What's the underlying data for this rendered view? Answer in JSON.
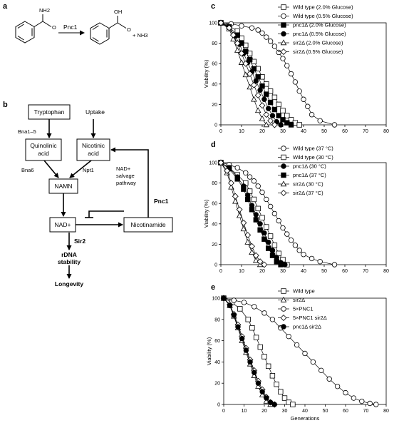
{
  "panels": {
    "a": {
      "letter": "a",
      "enzyme": "Pnc1",
      "substrate_group": "NH2",
      "product_group": "OH",
      "product_atom": "O",
      "byproduct": "+ NH3"
    },
    "b": {
      "letter": "b",
      "nodes": {
        "tryptophan": "Tryptophan",
        "uptake": "Uptake",
        "quinolinic": [
          "Quinolinic",
          "acid"
        ],
        "nicotinic": [
          "Nicotinic",
          "acid"
        ],
        "namn": "NAMN",
        "nad": "NAD+",
        "nicotinamide": "Nicotinamide",
        "rdna": [
          "rDNA",
          "stability"
        ],
        "longevity": "Longevity"
      },
      "edges": {
        "bna1_5": "Bna1–5",
        "bna6": "Bna6",
        "npt1": "Npt1",
        "salvage": [
          "NAD+",
          "salvage",
          "pathway"
        ],
        "pnc1": "Pnc1",
        "sir2": "Sir2"
      }
    }
  },
  "chart_data": [
    {
      "panel": "c",
      "type": "line",
      "xlabel": "",
      "ylabel": "Viability (%)",
      "xlim": [
        0,
        80
      ],
      "ylim": [
        0,
        100
      ],
      "xticks": [
        0,
        10,
        20,
        30,
        40,
        50,
        60,
        70,
        80
      ],
      "yticks": [
        0,
        20,
        40,
        60,
        80,
        100
      ],
      "legend_position": "top-right",
      "series": [
        {
          "name": "Wild type (2.0% Glucose)",
          "marker": "square-open",
          "x": [
            0,
            4,
            8,
            10,
            12,
            14,
            16,
            18,
            20,
            22,
            24,
            26,
            28,
            30,
            32,
            34,
            36,
            38
          ],
          "y": [
            100,
            97,
            92,
            85,
            78,
            70,
            62,
            55,
            47,
            40,
            33,
            27,
            20,
            14,
            9,
            5,
            2,
            0
          ]
        },
        {
          "name": "Wild type (0.5% Glucose)",
          "marker": "circle-open",
          "x": [
            0,
            5,
            10,
            15,
            18,
            20,
            22,
            24,
            26,
            28,
            30,
            32,
            34,
            36,
            38,
            40,
            42,
            44,
            48,
            55
          ],
          "y": [
            100,
            99,
            97,
            95,
            93,
            90,
            86,
            82,
            77,
            71,
            65,
            58,
            50,
            42,
            33,
            25,
            18,
            10,
            4,
            0
          ]
        },
        {
          "name": "pnc1Δ (2.0% Glucose)",
          "marker": "square-filled",
          "x": [
            0,
            4,
            8,
            10,
            12,
            14,
            16,
            18,
            20,
            22,
            24,
            26,
            28,
            30,
            32,
            34
          ],
          "y": [
            100,
            96,
            88,
            80,
            72,
            64,
            55,
            47,
            38,
            30,
            22,
            15,
            9,
            5,
            2,
            0
          ]
        },
        {
          "name": "pnc1Δ (0.5% Glucose)",
          "marker": "circle-filled",
          "x": [
            0,
            4,
            7,
            9,
            11,
            13,
            15,
            17,
            19,
            21,
            23,
            25,
            27,
            29
          ],
          "y": [
            100,
            95,
            87,
            79,
            70,
            61,
            52,
            43,
            34,
            25,
            16,
            9,
            3,
            0
          ]
        },
        {
          "name": "sir2Δ (2.0% Glucose)",
          "marker": "triangle-open",
          "x": [
            0,
            4,
            6,
            8,
            10,
            12,
            14,
            16,
            18,
            20,
            22
          ],
          "y": [
            100,
            94,
            84,
            73,
            61,
            49,
            37,
            25,
            14,
            6,
            0
          ]
        },
        {
          "name": "sir2Δ (0.5% Glucose)",
          "marker": "diamond-open",
          "x": [
            0,
            4,
            6,
            8,
            10,
            12,
            14,
            16,
            18,
            20,
            22,
            24,
            26
          ],
          "y": [
            100,
            95,
            88,
            80,
            70,
            60,
            50,
            39,
            29,
            19,
            10,
            4,
            0
          ]
        }
      ]
    },
    {
      "panel": "d",
      "type": "line",
      "xlabel": "",
      "ylabel": "Viability (%)",
      "xlim": [
        0,
        80
      ],
      "ylim": [
        0,
        100
      ],
      "xticks": [
        0,
        10,
        20,
        30,
        40,
        50,
        60,
        70,
        80
      ],
      "yticks": [
        0,
        20,
        40,
        60,
        80,
        100
      ],
      "legend_position": "top-right",
      "series": [
        {
          "name": "Wild type (37 °C)",
          "marker": "circle-open",
          "x": [
            0,
            4,
            8,
            12,
            14,
            16,
            18,
            20,
            22,
            24,
            26,
            28,
            30,
            32,
            34,
            36,
            38,
            40,
            44,
            48,
            55
          ],
          "y": [
            100,
            98,
            95,
            90,
            86,
            82,
            77,
            71,
            64,
            57,
            50,
            43,
            36,
            30,
            24,
            19,
            14,
            10,
            6,
            3,
            0
          ]
        },
        {
          "name": "Wild type (30 °C)",
          "marker": "square-open",
          "x": [
            0,
            4,
            8,
            12,
            14,
            16,
            18,
            20,
            22,
            24,
            26,
            28,
            30,
            32
          ],
          "y": [
            100,
            95,
            88,
            80,
            72,
            64,
            55,
            46,
            37,
            28,
            19,
            11,
            5,
            0
          ]
        },
        {
          "name": "pnc1Δ (30 °C)",
          "marker": "circle-filled",
          "x": [
            0,
            4,
            8,
            11,
            13,
            15,
            17,
            19,
            21,
            23,
            25,
            27,
            29,
            31
          ],
          "y": [
            100,
            95,
            86,
            77,
            68,
            58,
            49,
            40,
            31,
            22,
            14,
            7,
            2,
            0
          ]
        },
        {
          "name": "pnc1Δ (37 °C)",
          "marker": "square-filled",
          "x": [
            0,
            4,
            8,
            11,
            13,
            15,
            17,
            19,
            21,
            23,
            25,
            27,
            29
          ],
          "y": [
            100,
            94,
            84,
            74,
            64,
            54,
            44,
            34,
            25,
            16,
            9,
            3,
            0
          ]
        },
        {
          "name": "sir2Δ (30 °C)",
          "marker": "triangle-open",
          "x": [
            0,
            3,
            5,
            7,
            9,
            11,
            13,
            15,
            17,
            19
          ],
          "y": [
            100,
            90,
            76,
            62,
            48,
            35,
            22,
            12,
            4,
            0
          ]
        },
        {
          "name": "sir2Δ (37 °C)",
          "marker": "diamond-open",
          "x": [
            0,
            3,
            5,
            7,
            9,
            11,
            13,
            15,
            17,
            19,
            21
          ],
          "y": [
            100,
            92,
            80,
            67,
            54,
            41,
            29,
            18,
            9,
            3,
            0
          ]
        }
      ]
    },
    {
      "panel": "e",
      "type": "line",
      "xlabel": "Generations",
      "ylabel": "Viability (%)",
      "xlim": [
        0,
        80
      ],
      "ylim": [
        0,
        100
      ],
      "xticks": [
        0,
        10,
        20,
        30,
        40,
        50,
        60,
        70,
        80
      ],
      "yticks": [
        0,
        20,
        40,
        60,
        80,
        100
      ],
      "legend_position": "top-right",
      "series": [
        {
          "name": "Wild type",
          "marker": "square-open",
          "x": [
            0,
            4,
            8,
            12,
            14,
            16,
            18,
            20,
            22,
            24,
            26,
            28,
            30,
            32,
            34
          ],
          "y": [
            100,
            96,
            90,
            80,
            72,
            63,
            54,
            45,
            36,
            27,
            19,
            12,
            6,
            2,
            0
          ]
        },
        {
          "name": "sir2Δ",
          "marker": "triangle-open",
          "x": [
            0,
            3,
            5,
            7,
            9,
            11,
            13,
            15,
            17,
            19,
            21,
            23
          ],
          "y": [
            100,
            93,
            83,
            72,
            60,
            49,
            38,
            27,
            17,
            9,
            3,
            0
          ]
        },
        {
          "name": "5×PNC1",
          "marker": "circle-open",
          "x": [
            0,
            5,
            10,
            15,
            20,
            24,
            28,
            32,
            36,
            40,
            44,
            48,
            52,
            56,
            60,
            64,
            68,
            72,
            75
          ],
          "y": [
            100,
            98,
            96,
            92,
            86,
            80,
            72,
            64,
            56,
            48,
            40,
            32,
            24,
            17,
            11,
            6,
            3,
            1,
            0
          ]
        },
        {
          "name": "5×PNC1 sir2Δ",
          "marker": "diamond-open",
          "x": [
            0,
            3,
            5,
            7,
            9,
            11,
            13,
            15,
            17,
            19,
            21,
            23,
            25
          ],
          "y": [
            100,
            94,
            85,
            75,
            64,
            53,
            42,
            32,
            22,
            14,
            7,
            2,
            0
          ]
        },
        {
          "name": "pnc1Δ sir2Δ",
          "marker": "circle-filled",
          "x": [
            0,
            3,
            5,
            7,
            9,
            11,
            13,
            15,
            17,
            19,
            21,
            23,
            25
          ],
          "y": [
            100,
            93,
            84,
            73,
            62,
            51,
            40,
            30,
            20,
            12,
            6,
            2,
            0
          ]
        }
      ]
    }
  ]
}
